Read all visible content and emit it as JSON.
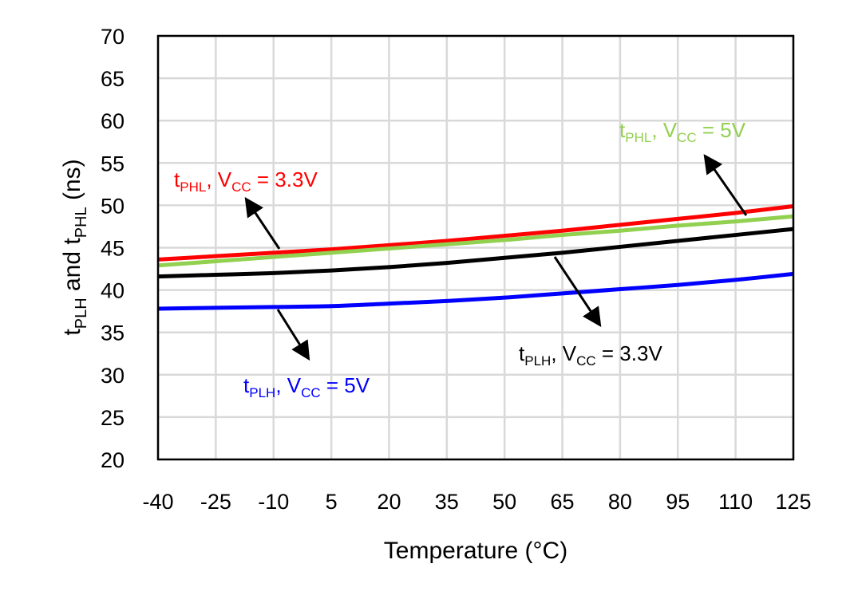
{
  "chart_data": {
    "type": "line",
    "title": "",
    "xlabel": "Temperature (°C)",
    "ylabel": {
      "main": "t",
      "sub1": "PLH",
      "mid": " and t",
      "sub2": "PHL",
      "suffix": " (ns)"
    },
    "xlim": [
      -40,
      125
    ],
    "ylim": [
      20,
      70
    ],
    "x_ticks": [
      "-40",
      "-25",
      "-10",
      "5",
      "20",
      "35",
      "50",
      "65",
      "80",
      "95",
      "110",
      "125"
    ],
    "y_ticks": [
      "20",
      "25",
      "30",
      "35",
      "40",
      "45",
      "50",
      "55",
      "60",
      "65",
      "70"
    ],
    "grid": true,
    "x": [
      -40,
      -25,
      -10,
      5,
      20,
      35,
      50,
      65,
      80,
      95,
      110,
      125
    ],
    "series": [
      {
        "name": {
          "t": "t",
          "sub": "PHL",
          "mid": ", V",
          "vsub": "CC",
          "val": " = 3.3V"
        },
        "color": "#ff0000",
        "values": [
          43.6,
          44.0,
          44.4,
          44.8,
          45.3,
          45.8,
          46.4,
          47.0,
          47.7,
          48.4,
          49.1,
          49.9
        ]
      },
      {
        "name": {
          "t": "t",
          "sub": "PHL",
          "mid": ", V",
          "vsub": "CC",
          "val": " = 5V"
        },
        "color": "#92d050",
        "values": [
          42.9,
          43.4,
          43.9,
          44.4,
          44.9,
          45.4,
          45.9,
          46.5,
          47.0,
          47.6,
          48.1,
          48.7
        ]
      },
      {
        "name": {
          "t": "t",
          "sub": "PLH",
          "mid": ", V",
          "vsub": "CC",
          "val": " = 3.3V"
        },
        "color": "#000000",
        "values": [
          41.6,
          41.8,
          42.0,
          42.3,
          42.7,
          43.2,
          43.8,
          44.4,
          45.1,
          45.8,
          46.5,
          47.2
        ]
      },
      {
        "name": {
          "t": "t",
          "sub": "PLH",
          "mid": ", V",
          "vsub": "CC",
          "val": " = 5V"
        },
        "color": "#0000ff",
        "values": [
          37.8,
          37.9,
          38.0,
          38.1,
          38.4,
          38.7,
          39.1,
          39.6,
          40.1,
          40.6,
          41.2,
          41.9
        ]
      }
    ]
  }
}
